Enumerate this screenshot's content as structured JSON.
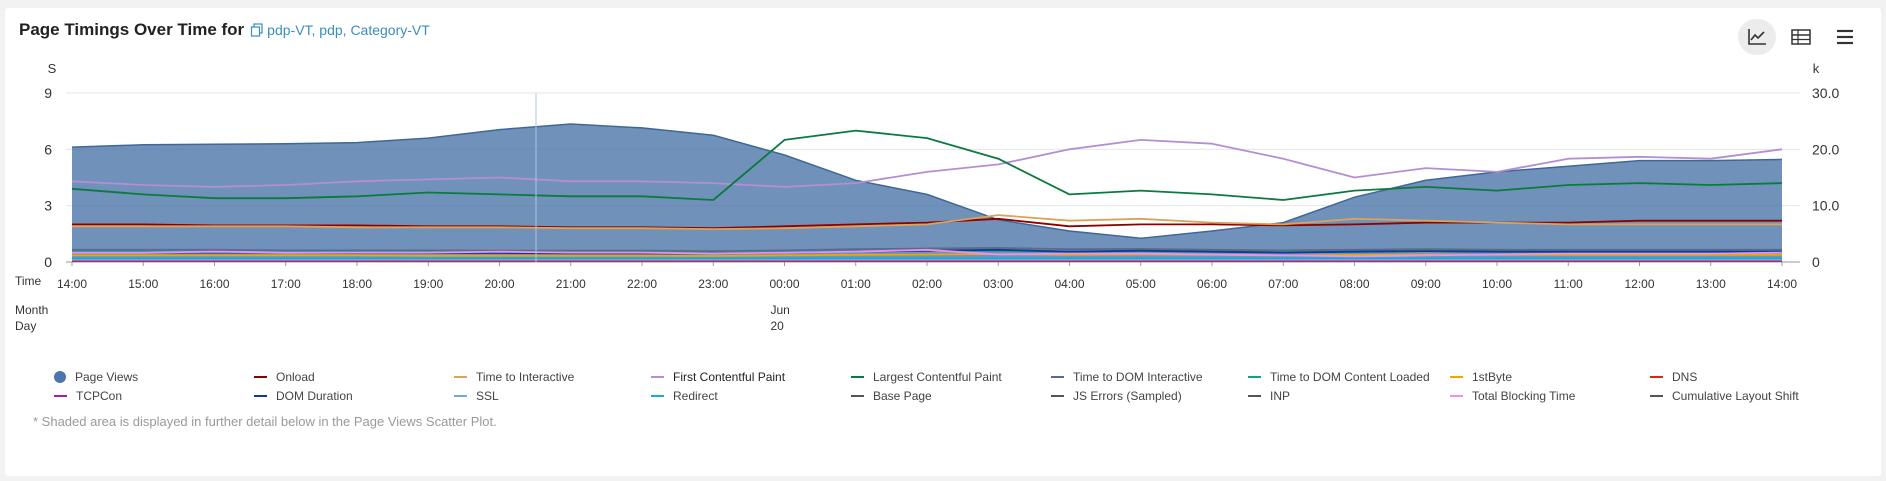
{
  "header": {
    "title": "Page Timings Over Time for",
    "subtitle": "pdp-VT, pdp, Category-VT"
  },
  "toolbar": {
    "icons": [
      "line-chart-icon",
      "table-icon",
      "menu-icon"
    ]
  },
  "note": "* Shaded area is displayed in further detail below in the Page Views Scatter Plot.",
  "chart_data": {
    "type": "line",
    "ylabel_left": "S",
    "ylabel_right": "k",
    "ylim_left": [
      0,
      9
    ],
    "ylim_right": [
      0,
      30
    ],
    "left_ticks": [
      "0",
      "3",
      "6",
      "9"
    ],
    "right_ticks": [
      "0",
      "10.0",
      "20.0",
      "30.0"
    ],
    "x_row_labels": [
      "Time",
      "Month",
      "Day"
    ],
    "x_ticks": [
      "14:00",
      "15:00",
      "16:00",
      "17:00",
      "18:00",
      "19:00",
      "20:00",
      "21:00",
      "22:00",
      "23:00",
      "00:00",
      "01:00",
      "02:00",
      "03:00",
      "04:00",
      "05:00",
      "06:00",
      "07:00",
      "08:00",
      "09:00",
      "10:00",
      "11:00",
      "12:00",
      "13:00",
      "14:00"
    ],
    "month_label": "Jun",
    "day_label": "20",
    "grid": true,
    "legend_position": "bottom",
    "series": [
      {
        "name": "Page Views",
        "axis": "right",
        "kind": "area",
        "color": "#4c75a9",
        "values": [
          20.4,
          20.8,
          20.9,
          21.0,
          21.2,
          22.0,
          23.5,
          24.5,
          23.8,
          22.5,
          19.0,
          14.5,
          12.0,
          7.5,
          5.5,
          4.2,
          5.5,
          7.0,
          11.5,
          14.5,
          16.0,
          17.0,
          18.0,
          18.0,
          18.2
        ]
      },
      {
        "name": "Onload",
        "axis": "left",
        "color": "#8b0000",
        "values": [
          2.0,
          2.0,
          1.95,
          1.95,
          1.95,
          1.9,
          1.9,
          1.85,
          1.85,
          1.8,
          1.9,
          2.0,
          2.1,
          2.3,
          1.9,
          2.0,
          2.0,
          1.95,
          2.0,
          2.1,
          2.1,
          2.1,
          2.2,
          2.2,
          2.2
        ]
      },
      {
        "name": "Time to Interactive",
        "axis": "left",
        "color": "#d9a35c",
        "values": [
          1.9,
          1.9,
          1.9,
          1.9,
          1.85,
          1.85,
          1.85,
          1.8,
          1.8,
          1.75,
          1.8,
          1.9,
          2.0,
          2.5,
          2.2,
          2.3,
          2.1,
          2.0,
          2.3,
          2.2,
          2.1,
          2.0,
          2.0,
          2.0,
          2.0
        ]
      },
      {
        "name": "First Contentful Paint",
        "axis": "left",
        "color": "#b48ed3",
        "values": [
          4.3,
          4.1,
          4.0,
          4.1,
          4.3,
          4.4,
          4.5,
          4.3,
          4.3,
          4.2,
          4.0,
          4.2,
          4.8,
          5.2,
          6.0,
          6.5,
          6.3,
          5.5,
          4.5,
          5.0,
          4.8,
          5.5,
          5.6,
          5.5,
          6.0
        ]
      },
      {
        "name": "Largest Contentful Paint",
        "axis": "left",
        "color": "#0b7a3e",
        "values": [
          3.9,
          3.6,
          3.4,
          3.4,
          3.5,
          3.7,
          3.6,
          3.5,
          3.5,
          3.3,
          6.5,
          7.0,
          6.6,
          5.5,
          3.6,
          3.8,
          3.6,
          3.3,
          3.8,
          4.0,
          3.8,
          4.1,
          4.2,
          4.1,
          4.2
        ]
      },
      {
        "name": "Time to DOM Interactive",
        "axis": "left",
        "color": "#5a6b85",
        "values": [
          0.65,
          0.65,
          0.65,
          0.62,
          0.62,
          0.62,
          0.6,
          0.6,
          0.6,
          0.58,
          0.62,
          0.68,
          0.72,
          0.75,
          0.68,
          0.7,
          0.65,
          0.62,
          0.65,
          0.68,
          0.65,
          0.65,
          0.65,
          0.65,
          0.65
        ]
      },
      {
        "name": "Time to DOM Content Loaded",
        "axis": "left",
        "color": "#12a08e",
        "values": [
          0.55,
          0.55,
          0.55,
          0.52,
          0.52,
          0.52,
          0.5,
          0.5,
          0.5,
          0.48,
          0.52,
          0.58,
          0.6,
          0.6,
          0.55,
          0.58,
          0.55,
          0.52,
          0.55,
          0.58,
          0.55,
          0.55,
          0.55,
          0.55,
          0.55
        ]
      },
      {
        "name": "1stByte",
        "axis": "left",
        "color": "#f0a500",
        "values": [
          0.35,
          0.35,
          0.35,
          0.35,
          0.35,
          0.33,
          0.33,
          0.33,
          0.33,
          0.32,
          0.35,
          0.38,
          0.4,
          0.42,
          0.38,
          0.4,
          0.38,
          0.35,
          0.38,
          0.4,
          0.38,
          0.38,
          0.38,
          0.38,
          0.38
        ]
      },
      {
        "name": "DNS",
        "axis": "left",
        "color": "#e02020",
        "values": [
          0.05,
          0.05,
          0.05,
          0.05,
          0.05,
          0.05,
          0.05,
          0.05,
          0.05,
          0.05,
          0.05,
          0.05,
          0.05,
          0.05,
          0.05,
          0.05,
          0.05,
          0.05,
          0.05,
          0.05,
          0.05,
          0.05,
          0.05,
          0.05,
          0.05
        ]
      },
      {
        "name": "TCPCon",
        "axis": "left",
        "color": "#a020a0",
        "values": [
          0.08,
          0.08,
          0.08,
          0.08,
          0.08,
          0.08,
          0.08,
          0.08,
          0.08,
          0.08,
          0.08,
          0.08,
          0.08,
          0.08,
          0.08,
          0.08,
          0.08,
          0.08,
          0.08,
          0.08,
          0.08,
          0.08,
          0.08,
          0.08,
          0.08
        ]
      },
      {
        "name": "DOM Duration",
        "axis": "left",
        "color": "#0b3d91",
        "values": [
          0.5,
          0.5,
          0.5,
          0.5,
          0.48,
          0.48,
          0.48,
          0.46,
          0.46,
          0.45,
          0.5,
          0.55,
          0.6,
          0.65,
          0.55,
          0.6,
          0.55,
          0.5,
          0.55,
          0.58,
          0.55,
          0.55,
          0.55,
          0.55,
          0.55
        ]
      },
      {
        "name": "SSL",
        "axis": "left",
        "color": "#6fa8dc",
        "values": [
          0.12,
          0.12,
          0.12,
          0.12,
          0.12,
          0.12,
          0.12,
          0.12,
          0.12,
          0.12,
          0.12,
          0.12,
          0.12,
          0.12,
          0.12,
          0.12,
          0.12,
          0.12,
          0.12,
          0.12,
          0.12,
          0.12,
          0.12,
          0.12,
          0.12
        ]
      },
      {
        "name": "Redirect",
        "axis": "left",
        "color": "#1ea7d8",
        "values": [
          0.2,
          0.2,
          0.2,
          0.2,
          0.2,
          0.2,
          0.2,
          0.2,
          0.2,
          0.2,
          0.2,
          0.2,
          0.2,
          0.2,
          0.2,
          0.2,
          0.2,
          0.2,
          0.2,
          0.2,
          0.2,
          0.2,
          0.2,
          0.2,
          0.2
        ]
      },
      {
        "name": "Base Page",
        "axis": "left",
        "color": "#555555",
        "values": []
      },
      {
        "name": "JS Errors (Sampled)",
        "axis": "left",
        "color": "#555555",
        "values": []
      },
      {
        "name": "INP",
        "axis": "left",
        "color": "#555555",
        "values": []
      },
      {
        "name": "Total Blocking Time",
        "axis": "left",
        "color": "#f08ef0",
        "values": [
          0.5,
          0.5,
          0.55,
          0.5,
          0.5,
          0.5,
          0.55,
          0.5,
          0.5,
          0.45,
          0.5,
          0.55,
          0.65,
          0.4,
          0.45,
          0.45,
          0.4,
          0.35,
          0.3,
          0.35,
          0.4,
          0.45,
          0.45,
          0.45,
          0.5
        ]
      },
      {
        "name": "Cumulative Layout Shift",
        "axis": "left",
        "color": "#555555",
        "values": []
      }
    ]
  }
}
